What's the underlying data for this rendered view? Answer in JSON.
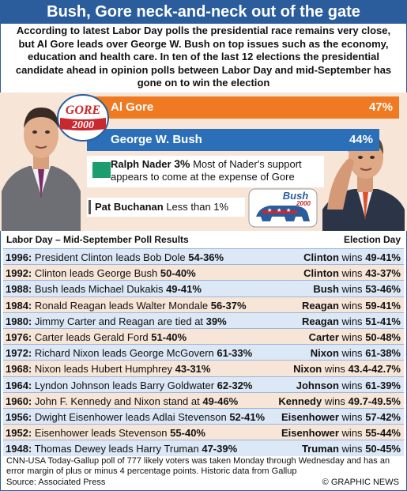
{
  "header": {
    "title": "Bush, Gore neck-and-neck out of the gate",
    "intro": "According to latest Labor Day polls the presidential race remains very close, but Al Gore leads over George W. Bush on top issues such as the economy, education and health care. In ten of the last 12 elections the presidential candidate ahead in opinion polls between Labor Day and mid-September has gone on to win the election"
  },
  "colors": {
    "title_bg": "#2b5d9c",
    "gore": "#f07a22",
    "bush": "#2b6fb8",
    "nader": "#1a9e6e",
    "buchanan": "#555555",
    "row_blue": "#dce8f6",
    "row_peach": "#f7e6d8"
  },
  "logos": {
    "gore_top": "GORE",
    "gore_bottom": "2000",
    "bush_top": "Bush",
    "bush_bottom": "2000"
  },
  "chart_data": {
    "type": "bar",
    "categories": [
      "Al Gore",
      "George W. Bush",
      "Ralph Nader",
      "Pat Buchanan"
    ],
    "values": [
      47,
      44,
      3,
      1
    ],
    "labels": [
      "47%",
      "44%",
      "3%",
      "Less than 1%"
    ],
    "annotations": {
      "nader": "Most of Nader's support appears to come at the expense of Gore"
    }
  },
  "table": {
    "left_header": "Labor Day – Mid-September Poll Results",
    "right_header": "Election Day",
    "rows": [
      {
        "year": "1996:",
        "text": "President Clinton leads Bob Dole",
        "value": "54-36%",
        "winner": "Clinton",
        "result_word": "wins",
        "result": "49-41%"
      },
      {
        "year": "1992:",
        "text": "Clinton leads George Bush",
        "value": "50-40%",
        "winner": "Clinton",
        "result_word": "wins",
        "result": "43-37%"
      },
      {
        "year": "1988:",
        "text": "Bush leads Michael Dukakis",
        "value": "49-41%",
        "winner": "Bush",
        "result_word": "wins",
        "result": "53-46%"
      },
      {
        "year": "1984:",
        "text": "Ronald Reagan leads Walter Mondale",
        "value": "56-37%",
        "winner": "Reagan",
        "result_word": "wins",
        "result": "59-41%"
      },
      {
        "year": "1980:",
        "text": "Jimmy Carter and Reagan are tied at",
        "value": "39%",
        "winner": "Reagan",
        "result_word": "wins",
        "result": "51-41%"
      },
      {
        "year": "1976:",
        "text": "Carter leads Gerald Ford",
        "value": "51-40%",
        "winner": "Carter",
        "result_word": "wins",
        "result": "50-48%"
      },
      {
        "year": "1972:",
        "text": "Richard Nixon leads George McGovern",
        "value": "61-33%",
        "winner": "Nixon",
        "result_word": "wins",
        "result": "61-38%"
      },
      {
        "year": "1968:",
        "text": "Nixon leads Hubert Humphrey",
        "value": "43-31%",
        "winner": "Nixon",
        "result_word": "wins",
        "result": "43.4-42.7%"
      },
      {
        "year": "1964:",
        "text": "Lyndon Johnson leads Barry Goldwater",
        "value": "62-32%",
        "winner": "Johnson",
        "result_word": "wins",
        "result": "61-39%"
      },
      {
        "year": "1960:",
        "text": "John F. Kennedy and Nixon stand at",
        "value": "49-46%",
        "winner": "Kennedy",
        "result_word": "wins",
        "result": "49.7-49.5%"
      },
      {
        "year": "1956:",
        "text": "Dwight Eisenhower leads Adlai Stevenson",
        "value": "52-41%",
        "winner": "Eisenhower",
        "result_word": "wins",
        "result": "57-42%"
      },
      {
        "year": "1952:",
        "text": "Eisenhower leads Stevenson",
        "value": "55-40%",
        "winner": "Eisenhower",
        "result_word": "wins",
        "result": "55-44%"
      },
      {
        "year": "1948:",
        "text": "Thomas Dewey leads Harry Truman",
        "value": "47-39%",
        "winner": "Truman",
        "result_word": "wins",
        "result": "50-45%"
      }
    ]
  },
  "footer": {
    "note": "CNN-USA Today-Gallup poll of 777 likely voters was taken Monday through Wednesday and has an error margin of plus or minus 4 percentage points. Historic data from Gallup",
    "source": "Source: Associated Press",
    "credit": "© GRAPHIC NEWS"
  }
}
